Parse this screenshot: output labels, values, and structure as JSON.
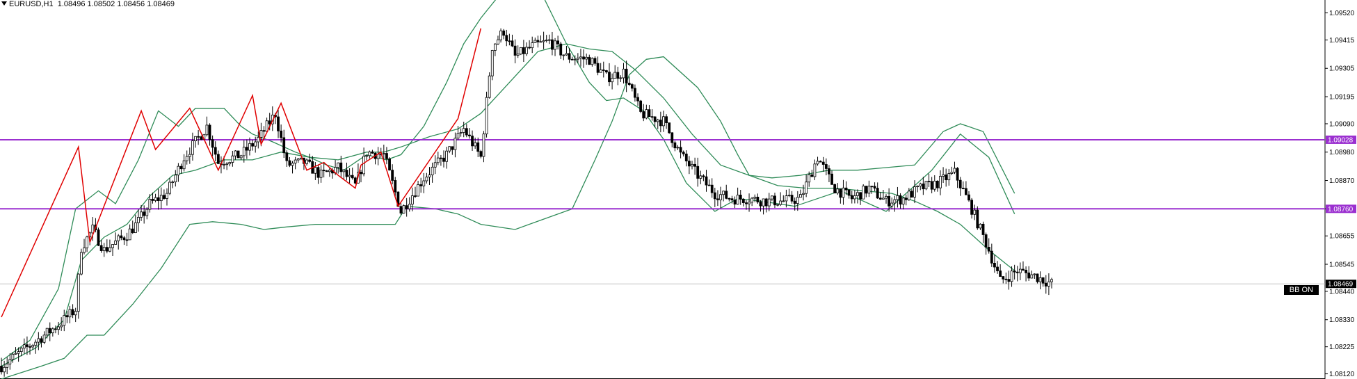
{
  "header": {
    "symbol": "EURUSD,H1",
    "open": "1.08496",
    "high": "1.08502",
    "low": "1.08456",
    "close": "1.08469"
  },
  "indicator_tag": "BB ON",
  "colors": {
    "bull": "#ffffff",
    "bear": "#000000",
    "band": "#2e8b57",
    "zigzag": "#e00000",
    "level": "#9b30d0",
    "current": "#000000"
  },
  "chart_data": {
    "type": "candlestick",
    "symbol": "EURUSD",
    "timeframe": "H1",
    "ylim": [
      1.081,
      1.0957
    ],
    "y_ticks": [
      "1.09520",
      "1.09415",
      "1.09305",
      "1.09195",
      "1.09090",
      "1.08980",
      "1.08870",
      "1.08760",
      "1.08655",
      "1.08545",
      "1.08440",
      "1.08330",
      "1.08225",
      "1.08120"
    ],
    "levels": [
      {
        "name": "resistance",
        "value": 1.09028,
        "label": "1.09028"
      },
      {
        "name": "support",
        "value": 1.0876,
        "label": "1.08760"
      }
    ],
    "current_price": {
      "value": 1.08469,
      "label": "1.08469"
    },
    "zigzag": [
      [
        0,
        1.0834
      ],
      [
        27,
        1.09
      ],
      [
        31,
        1.0863
      ],
      [
        49,
        1.0914
      ],
      [
        54,
        1.0899
      ],
      [
        66,
        1.0915
      ],
      [
        76,
        1.0891
      ],
      [
        88,
        1.092
      ],
      [
        91,
        1.0901
      ],
      [
        98,
        1.0917
      ],
      [
        107,
        1.0891
      ],
      [
        113,
        1.0894
      ],
      [
        118,
        1.0889
      ],
      [
        124,
        1.0884
      ],
      [
        126,
        1.0893
      ],
      [
        133,
        1.0898
      ],
      [
        139,
        1.0877
      ],
      [
        160,
        1.0911
      ],
      [
        168,
        1.0946
      ]
    ],
    "bollinger": {
      "upper": [
        [
          0,
          1.0817
        ],
        [
          10,
          1.0825
        ],
        [
          20,
          1.0845
        ],
        [
          26,
          1.0876
        ],
        [
          34,
          1.0883
        ],
        [
          40,
          1.0878
        ],
        [
          48,
          1.0895
        ],
        [
          55,
          1.0914
        ],
        [
          62,
          1.0908
        ],
        [
          68,
          1.0915
        ],
        [
          78,
          1.0915
        ],
        [
          84,
          1.0908
        ],
        [
          88,
          1.0905
        ],
        [
          95,
          1.0902
        ],
        [
          103,
          1.0898
        ],
        [
          108,
          1.0896
        ],
        [
          114,
          1.0893
        ],
        [
          120,
          1.0891
        ],
        [
          128,
          1.0897
        ],
        [
          135,
          1.0895
        ],
        [
          140,
          1.0897
        ],
        [
          148,
          1.0908
        ],
        [
          156,
          1.0925
        ],
        [
          162,
          1.094
        ],
        [
          168,
          1.095
        ],
        [
          176,
          1.0961
        ],
        [
          185,
          1.0965
        ],
        [
          190,
          1.0958
        ],
        [
          198,
          1.094
        ],
        [
          206,
          1.0925
        ],
        [
          212,
          1.0918
        ],
        [
          218,
          1.0919
        ],
        [
          225,
          1.0914
        ],
        [
          232,
          1.0903
        ],
        [
          240,
          1.0886
        ],
        [
          250,
          1.0875
        ],
        [
          258,
          1.088
        ],
        [
          266,
          1.0879
        ],
        [
          278,
          1.0877
        ],
        [
          294,
          1.0883
        ],
        [
          310,
          1.0875
        ],
        [
          326,
          1.0891
        ],
        [
          336,
          1.0905
        ],
        [
          346,
          1.0896
        ],
        [
          355,
          1.0874
        ]
      ],
      "middle": [
        [
          0,
          1.0815
        ],
        [
          12,
          1.0822
        ],
        [
          22,
          1.0833
        ],
        [
          28,
          1.0856
        ],
        [
          36,
          1.0865
        ],
        [
          44,
          1.087
        ],
        [
          52,
          1.0881
        ],
        [
          60,
          1.0889
        ],
        [
          68,
          1.0891
        ],
        [
          78,
          1.0895
        ],
        [
          88,
          1.0895
        ],
        [
          98,
          1.0898
        ],
        [
          108,
          1.0896
        ],
        [
          118,
          1.0895
        ],
        [
          128,
          1.0898
        ],
        [
          134,
          1.0898
        ],
        [
          140,
          1.09
        ],
        [
          150,
          1.0904
        ],
        [
          160,
          1.0907
        ],
        [
          168,
          1.0913
        ],
        [
          178,
          1.0925
        ],
        [
          188,
          1.0937
        ],
        [
          198,
          1.094
        ],
        [
          206,
          1.0938
        ],
        [
          214,
          1.0937
        ],
        [
          222,
          1.093
        ],
        [
          232,
          1.0919
        ],
        [
          242,
          1.0905
        ],
        [
          252,
          1.0893
        ],
        [
          262,
          1.0889
        ],
        [
          272,
          1.0885
        ],
        [
          282,
          1.0884
        ],
        [
          292,
          1.0884
        ],
        [
          302,
          1.0883
        ],
        [
          312,
          1.0882
        ],
        [
          320,
          1.0879
        ],
        [
          328,
          1.0875
        ],
        [
          336,
          1.087
        ],
        [
          346,
          1.086
        ],
        [
          355,
          1.0852
        ]
      ],
      "lower": [
        [
          0,
          1.081
        ],
        [
          14,
          1.0815
        ],
        [
          22,
          1.0818
        ],
        [
          30,
          1.0827
        ],
        [
          36,
          1.0827
        ],
        [
          46,
          1.0839
        ],
        [
          56,
          1.0853
        ],
        [
          66,
          1.087
        ],
        [
          74,
          1.0871
        ],
        [
          84,
          1.087
        ],
        [
          92,
          1.0868
        ],
        [
          100,
          1.0869
        ],
        [
          110,
          1.087
        ],
        [
          120,
          1.087
        ],
        [
          130,
          1.087
        ],
        [
          138,
          1.087
        ],
        [
          142,
          1.0877
        ],
        [
          152,
          1.0876
        ],
        [
          160,
          1.0874
        ],
        [
          168,
          1.087
        ],
        [
          180,
          1.0868
        ],
        [
          190,
          1.0872
        ],
        [
          200,
          1.0876
        ],
        [
          208,
          1.0895
        ],
        [
          214,
          1.091
        ],
        [
          220,
          1.0928
        ],
        [
          226,
          1.0934
        ],
        [
          232,
          1.0935
        ],
        [
          244,
          1.0923
        ],
        [
          252,
          1.091
        ],
        [
          258,
          1.0897
        ],
        [
          262,
          1.0889
        ],
        [
          270,
          1.0888
        ],
        [
          280,
          1.0889
        ],
        [
          290,
          1.0891
        ],
        [
          300,
          1.0891
        ],
        [
          310,
          1.0892
        ],
        [
          320,
          1.0893
        ],
        [
          330,
          1.0906
        ],
        [
          336,
          1.0909
        ],
        [
          344,
          1.0906
        ],
        [
          355,
          1.0882
        ]
      ]
    },
    "key_points": [
      [
        0,
        1.0815
      ],
      [
        10,
        1.0823
      ],
      [
        20,
        1.0831
      ],
      [
        26,
        1.0837
      ],
      [
        28,
        1.0861
      ],
      [
        32,
        1.0868
      ],
      [
        36,
        1.086
      ],
      [
        44,
        1.0866
      ],
      [
        48,
        1.0871
      ],
      [
        52,
        1.0878
      ],
      [
        58,
        1.0882
      ],
      [
        64,
        1.0896
      ],
      [
        72,
        1.0908
      ],
      [
        76,
        1.0894
      ],
      [
        84,
        1.0897
      ],
      [
        90,
        1.0903
      ],
      [
        96,
        1.0913
      ],
      [
        100,
        1.0893
      ],
      [
        106,
        1.0894
      ],
      [
        112,
        1.0889
      ],
      [
        118,
        1.0892
      ],
      [
        124,
        1.0885
      ],
      [
        128,
        1.0898
      ],
      [
        134,
        1.0897
      ],
      [
        140,
        1.0875
      ],
      [
        148,
        1.0888
      ],
      [
        156,
        1.0897
      ],
      [
        162,
        1.0907
      ],
      [
        168,
        1.0896
      ],
      [
        172,
        1.0939
      ],
      [
        176,
        1.0945
      ],
      [
        180,
        1.0935
      ],
      [
        186,
        1.0939
      ],
      [
        192,
        1.0941
      ],
      [
        198,
        1.0935
      ],
      [
        206,
        1.0934
      ],
      [
        212,
        1.0927
      ],
      [
        218,
        1.0929
      ],
      [
        224,
        1.0913
      ],
      [
        232,
        1.091
      ],
      [
        238,
        1.0897
      ],
      [
        244,
        1.0889
      ],
      [
        250,
        1.0882
      ],
      [
        256,
        1.088
      ],
      [
        262,
        1.088
      ],
      [
        268,
        1.0879
      ],
      [
        274,
        1.0879
      ],
      [
        280,
        1.088
      ],
      [
        286,
        1.0896
      ],
      [
        292,
        1.0884
      ],
      [
        298,
        1.088
      ],
      [
        304,
        1.0884
      ],
      [
        310,
        1.0879
      ],
      [
        316,
        1.088
      ],
      [
        322,
        1.0884
      ],
      [
        328,
        1.0886
      ],
      [
        334,
        1.089
      ],
      [
        340,
        1.0876
      ],
      [
        346,
        1.086
      ],
      [
        350,
        1.0848
      ],
      [
        356,
        1.0852
      ],
      [
        362,
        1.085
      ],
      [
        366,
        1.0848
      ],
      [
        368,
        1.0847
      ]
    ]
  }
}
